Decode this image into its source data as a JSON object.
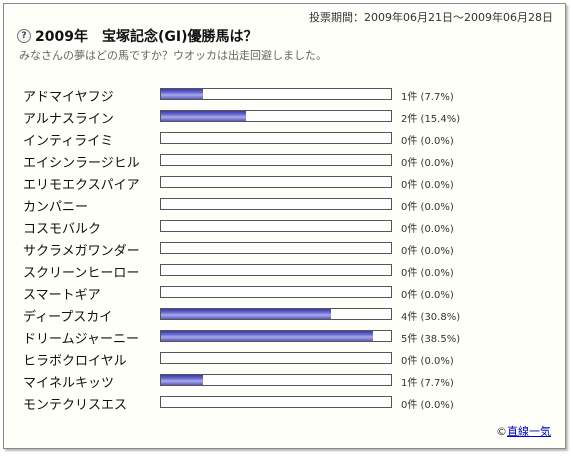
{
  "poll": {
    "period_label": "投票期間",
    "period": "2009年06月21日～2009年06月28日",
    "title": "2009年　宝塚記念(GI)優勝馬は？",
    "subtitle": "みなさんの夢はどの馬ですか？ウオッカは出走回避しました。"
  },
  "chart_data": {
    "type": "bar",
    "categories": [
      "アドマイヤフジ",
      "アルナスライン",
      "インティライミ",
      "エイシンラージヒル",
      "エリモエクスパイア",
      "カンパニー",
      "コスモバルク",
      "サクラメガワンダー",
      "スクリーンヒーロー",
      "スマートギア",
      "ディープスカイ",
      "ドリームジャーニー",
      "ヒラボクロイヤル",
      "マイネルキッツ",
      "モンテクリスエス"
    ],
    "values": [
      1,
      2,
      0,
      0,
      0,
      0,
      0,
      0,
      0,
      0,
      4,
      5,
      0,
      1,
      0
    ],
    "labels": [
      "1件 (7.7%)",
      "2件 (15.4%)",
      "0件 (0.0%)",
      "0件 (0.0%)",
      "0件 (0.0%)",
      "0件 (0.0%)",
      "0件 (0.0%)",
      "0件 (0.0%)",
      "0件 (0.0%)",
      "0件 (0.0%)",
      "4件 (30.8%)",
      "5件 (38.5%)",
      "0件 (0.0%)",
      "1件 (7.7%)",
      "0件 (0.0%)"
    ],
    "percentages": [
      7.7,
      15.4,
      0.0,
      0.0,
      0.0,
      0.0,
      0.0,
      0.0,
      0.0,
      0.0,
      30.8,
      38.5,
      0.0,
      7.7,
      0.0
    ],
    "max_percent": 41.7
  },
  "footer": {
    "copyright": "©",
    "credit_link": "直線一気"
  },
  "icons": {
    "title_icon": "question-icon"
  }
}
